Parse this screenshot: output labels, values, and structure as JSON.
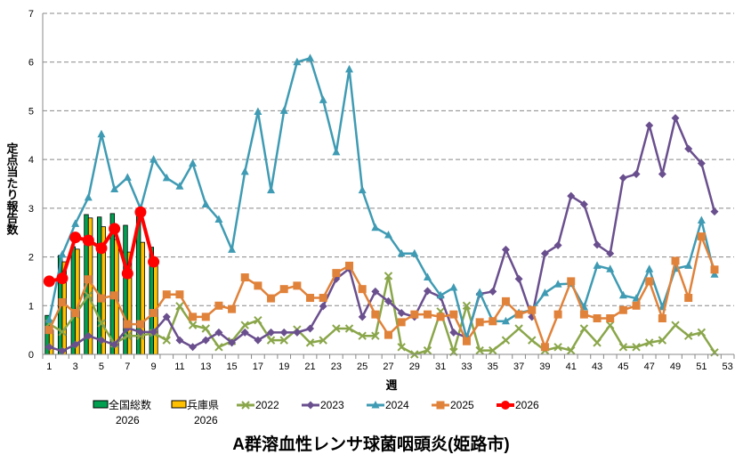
{
  "chart_data": {
    "type": "bar+line",
    "title": "A群溶血性レンサ球菌咽頭炎(姫路市)",
    "xlabel": "週",
    "ylabel": "定点当たり報告数",
    "ylim": [
      0,
      7
    ],
    "yticks": [
      "0",
      "1",
      "2",
      "3",
      "4",
      "5",
      "6",
      "7"
    ],
    "xlim": [
      1,
      53
    ],
    "xticks": [
      "1",
      "3",
      "5",
      "7",
      "9",
      "11",
      "13",
      "15",
      "17",
      "19",
      "21",
      "23",
      "25",
      "27",
      "29",
      "31",
      "33",
      "35",
      "37",
      "39",
      "41",
      "43",
      "45",
      "47",
      "49",
      "51",
      "53"
    ],
    "grid": "horizontal dashed",
    "legend_position": "bottom",
    "bars": [
      {
        "name": "全国総数",
        "name2": "2026",
        "color": "#00a050",
        "weeks": [
          1,
          2,
          3,
          4,
          5,
          6,
          7,
          8,
          9
        ],
        "values": [
          0.8,
          2.03,
          2.21,
          2.87,
          2.82,
          2.89,
          2.65,
          2.95,
          2.2
        ]
      },
      {
        "name": "兵庫県",
        "name2": "2026",
        "color": "#ffc000",
        "weeks": [
          1,
          2,
          3,
          4,
          5,
          6,
          7,
          8,
          9
        ],
        "values": [
          0.5,
          1.9,
          2.16,
          2.8,
          2.62,
          2.36,
          2.1,
          2.3,
          1.9
        ]
      }
    ],
    "series": [
      {
        "name": "2022",
        "color": "#8aa64a",
        "marker": "x",
        "values": [
          0.63,
          0.46,
          0.82,
          1.21,
          0.64,
          0.22,
          0.38,
          0.38,
          0.44,
          0.29,
          0.99,
          0.6,
          0.53,
          0.15,
          0.27,
          0.6,
          0.7,
          0.29,
          0.29,
          0.51,
          0.24,
          0.29,
          0.53,
          0.53,
          0.38,
          0.38,
          1.61,
          0.15,
          0.0,
          0.08,
          0.88,
          0.05,
          1.0,
          0.08,
          0.08,
          0.29,
          0.53,
          0.29,
          0.08,
          0.15,
          0.08,
          0.53,
          0.24,
          0.6,
          0.15,
          0.15,
          0.24,
          0.29,
          0.6,
          0.38,
          0.45,
          0.04
        ]
      },
      {
        "name": "2023",
        "color": "#6a4f8e",
        "marker": "diamond",
        "values": [
          0.15,
          0.07,
          0.2,
          0.38,
          0.29,
          0.2,
          0.54,
          0.46,
          0.46,
          0.77,
          0.29,
          0.15,
          0.29,
          0.45,
          0.24,
          0.45,
          0.29,
          0.45,
          0.45,
          0.45,
          0.53,
          0.99,
          1.55,
          1.76,
          0.77,
          1.29,
          1.09,
          0.85,
          0.77,
          1.3,
          1.18,
          0.45,
          0.35,
          1.24,
          1.29,
          2.15,
          1.55,
          0.77,
          2.07,
          2.24,
          3.25,
          3.08,
          2.25,
          2.07,
          3.62,
          3.7,
          4.7,
          3.7,
          4.85,
          4.22,
          3.92,
          2.93
        ]
      },
      {
        "name": "2024",
        "color": "#3f9bb3",
        "marker": "triangle",
        "values": [
          0.71,
          2.05,
          2.68,
          3.22,
          4.52,
          3.39,
          3.63,
          2.99,
          4.0,
          3.62,
          3.45,
          3.92,
          3.08,
          2.77,
          2.15,
          3.75,
          4.98,
          3.37,
          5.0,
          6.0,
          6.08,
          5.22,
          4.15,
          5.85,
          3.37,
          2.6,
          2.45,
          2.07,
          2.07,
          1.58,
          1.21,
          1.37,
          0.33,
          1.27,
          0.68,
          0.68,
          0.85,
          0.91,
          1.26,
          1.44,
          1.45,
          0.97,
          1.82,
          1.75,
          1.21,
          1.15,
          1.75,
          0.97,
          1.76,
          1.82,
          2.75,
          1.64
        ]
      },
      {
        "name": "2025",
        "color": "#e0823a",
        "marker": "square",
        "values": [
          0.5,
          1.07,
          0.85,
          1.54,
          1.15,
          1.21,
          0.62,
          0.62,
          0.85,
          1.23,
          1.23,
          0.77,
          0.77,
          1.0,
          0.93,
          1.58,
          1.41,
          1.15,
          1.34,
          1.41,
          1.16,
          1.16,
          1.67,
          1.82,
          1.34,
          0.82,
          0.4,
          0.66,
          0.82,
          0.82,
          0.77,
          0.82,
          0.27,
          0.66,
          0.68,
          1.09,
          0.82,
          0.91,
          0.15,
          0.82,
          1.5,
          0.82,
          0.74,
          0.74,
          0.91,
          1.0,
          1.5,
          0.74,
          1.92,
          1.16,
          2.42,
          1.74
        ]
      },
      {
        "name": "2026",
        "color": "#ff0000",
        "marker": "circle",
        "values": [
          1.5,
          1.56,
          2.4,
          2.34,
          2.18,
          2.58,
          1.66,
          2.92,
          1.9
        ]
      }
    ]
  }
}
